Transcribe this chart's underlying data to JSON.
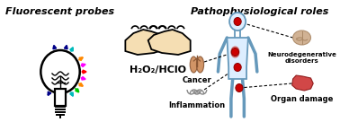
{
  "title_left": "Fluorescent probes",
  "title_right": "Pathophysiological roles",
  "center_formula": "H₂O₂/HClO",
  "bg_color": "#FFFFFF",
  "ray_data": [
    [
      60,
      "#FF8800",
      13
    ],
    [
      75,
      "#FF00FF",
      13
    ],
    [
      90,
      "#FF0000",
      13
    ],
    [
      105,
      "#FF00FF",
      13
    ],
    [
      120,
      "#FF8800",
      13
    ],
    [
      135,
      "#00CC00",
      13
    ],
    [
      150,
      "#00BBBB",
      12
    ],
    [
      170,
      "#000088",
      11
    ],
    [
      190,
      "#000088",
      11
    ],
    [
      210,
      "#000088",
      11
    ],
    [
      30,
      "#00BBBB",
      12
    ],
    [
      15,
      "#000088",
      11
    ],
    [
      345,
      "#000088",
      11
    ]
  ],
  "label_cancer": "Cancer",
  "label_inflammation": "Inflammation",
  "label_neuro": "Neurodegenerative\ndisorders",
  "label_organ": "Organ damage",
  "body_color": "#6699BB",
  "dot_color": "#CC0000",
  "lung_color": "#CC8855",
  "brain_color": "#CCAA88",
  "liver_color": "#CC3333"
}
